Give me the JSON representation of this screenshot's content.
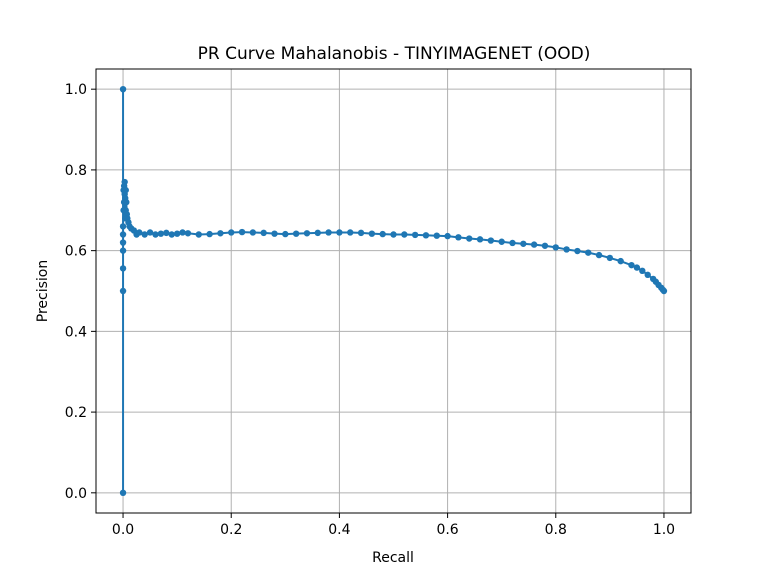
{
  "chart_data": {
    "type": "line",
    "title": "PR Curve Mahalanobis - TINYIMAGENET (OOD)",
    "xlabel": "Recall",
    "ylabel": "Precision",
    "xlim": [
      -0.05,
      1.05
    ],
    "ylim": [
      -0.05,
      1.05
    ],
    "xticks": [
      "0.0",
      "0.2",
      "0.4",
      "0.6",
      "0.8",
      "1.0"
    ],
    "yticks": [
      "0.0",
      "0.2",
      "0.4",
      "0.6",
      "0.8",
      "1.0"
    ],
    "grid": true,
    "legend": "none",
    "marker": "dot",
    "color": "#1f77b4",
    "series": [
      {
        "x": [
          0.0,
          0.0,
          0.0,
          0.0,
          0.0,
          0.0,
          0.0,
          0.0,
          0.001,
          0.001,
          0.002,
          0.002,
          0.003,
          0.003,
          0.004,
          0.004,
          0.005,
          0.005,
          0.006,
          0.007,
          0.008,
          0.01,
          0.012,
          0.015,
          0.02,
          0.025,
          0.03,
          0.04,
          0.05,
          0.06,
          0.07,
          0.08,
          0.09,
          0.1,
          0.11,
          0.12,
          0.14,
          0.16,
          0.18,
          0.2,
          0.22,
          0.24,
          0.26,
          0.28,
          0.3,
          0.32,
          0.34,
          0.36,
          0.38,
          0.4,
          0.42,
          0.44,
          0.46,
          0.48,
          0.5,
          0.52,
          0.54,
          0.56,
          0.58,
          0.6,
          0.62,
          0.64,
          0.66,
          0.68,
          0.7,
          0.72,
          0.74,
          0.76,
          0.78,
          0.8,
          0.82,
          0.84,
          0.86,
          0.88,
          0.9,
          0.92,
          0.94,
          0.95,
          0.96,
          0.97,
          0.98,
          0.985,
          0.99,
          0.995,
          0.998,
          1.0
        ],
        "y": [
          0.0,
          1.0,
          0.5,
          0.556,
          0.6,
          0.62,
          0.64,
          0.66,
          0.75,
          0.7,
          0.76,
          0.72,
          0.77,
          0.74,
          0.68,
          0.73,
          0.75,
          0.7,
          0.72,
          0.69,
          0.68,
          0.67,
          0.66,
          0.655,
          0.65,
          0.64,
          0.645,
          0.64,
          0.645,
          0.64,
          0.642,
          0.644,
          0.64,
          0.642,
          0.645,
          0.643,
          0.64,
          0.641,
          0.643,
          0.645,
          0.646,
          0.645,
          0.644,
          0.642,
          0.641,
          0.642,
          0.643,
          0.644,
          0.645,
          0.645,
          0.645,
          0.644,
          0.642,
          0.641,
          0.64,
          0.64,
          0.639,
          0.638,
          0.637,
          0.636,
          0.633,
          0.63,
          0.628,
          0.625,
          0.622,
          0.619,
          0.617,
          0.615,
          0.612,
          0.608,
          0.603,
          0.599,
          0.595,
          0.589,
          0.582,
          0.574,
          0.564,
          0.558,
          0.55,
          0.54,
          0.53,
          0.523,
          0.515,
          0.508,
          0.503,
          0.5
        ]
      }
    ]
  }
}
